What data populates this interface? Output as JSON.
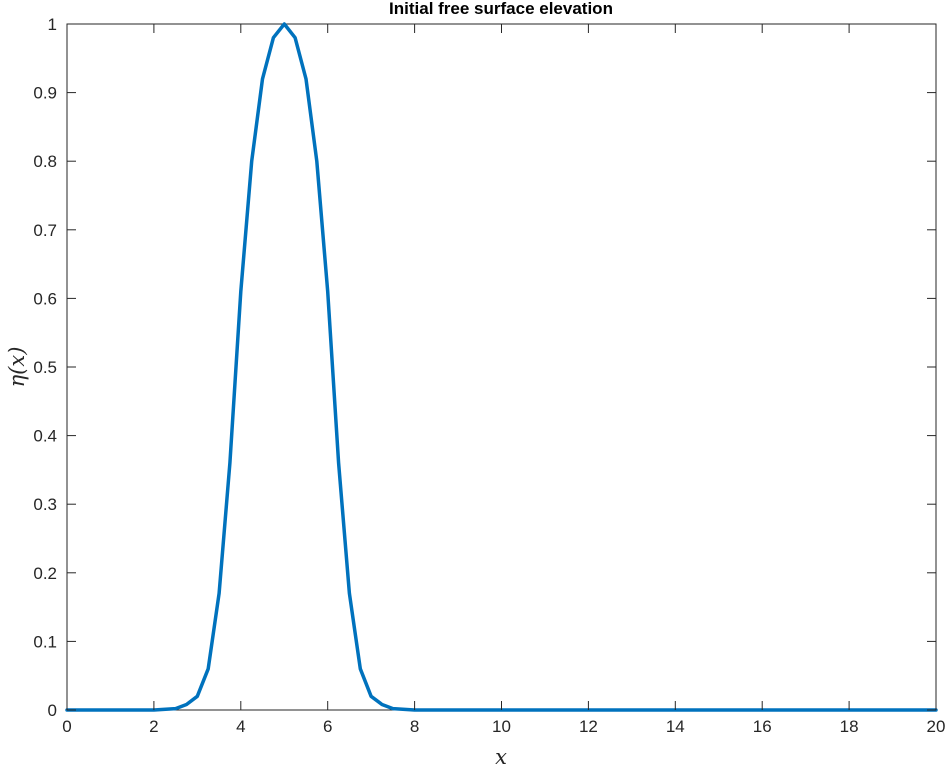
{
  "chart_data": {
    "type": "line",
    "title": "Initial free surface elevation",
    "xlabel": "x",
    "ylabel": "η(x)",
    "xlim": [
      0,
      20
    ],
    "ylim": [
      0,
      1
    ],
    "xticks": [
      "0",
      "2",
      "4",
      "6",
      "8",
      "10",
      "12",
      "14",
      "16",
      "18",
      "20"
    ],
    "yticks": [
      "0",
      "0.1",
      "0.2",
      "0.3",
      "0.4",
      "0.5",
      "0.6",
      "0.7",
      "0.8",
      "0.9",
      "1"
    ],
    "grid": false,
    "box": true,
    "series": [
      {
        "color": "#0072bd",
        "x": [
          0,
          1,
          2,
          2.5,
          2.75,
          3,
          3.25,
          3.5,
          3.75,
          4,
          4.25,
          4.5,
          4.75,
          5,
          5.25,
          5.5,
          5.75,
          6,
          6.25,
          6.5,
          6.75,
          7,
          7.25,
          7.5,
          8,
          9,
          10,
          12,
          14,
          16,
          18,
          20
        ],
        "y": [
          0,
          0,
          0,
          0.002,
          0.008,
          0.02,
          0.06,
          0.17,
          0.36,
          0.61,
          0.8,
          0.92,
          0.98,
          1.0,
          0.98,
          0.92,
          0.8,
          0.61,
          0.36,
          0.17,
          0.06,
          0.02,
          0.008,
          0.002,
          0,
          0,
          0,
          0,
          0,
          0,
          0,
          0
        ]
      }
    ]
  }
}
